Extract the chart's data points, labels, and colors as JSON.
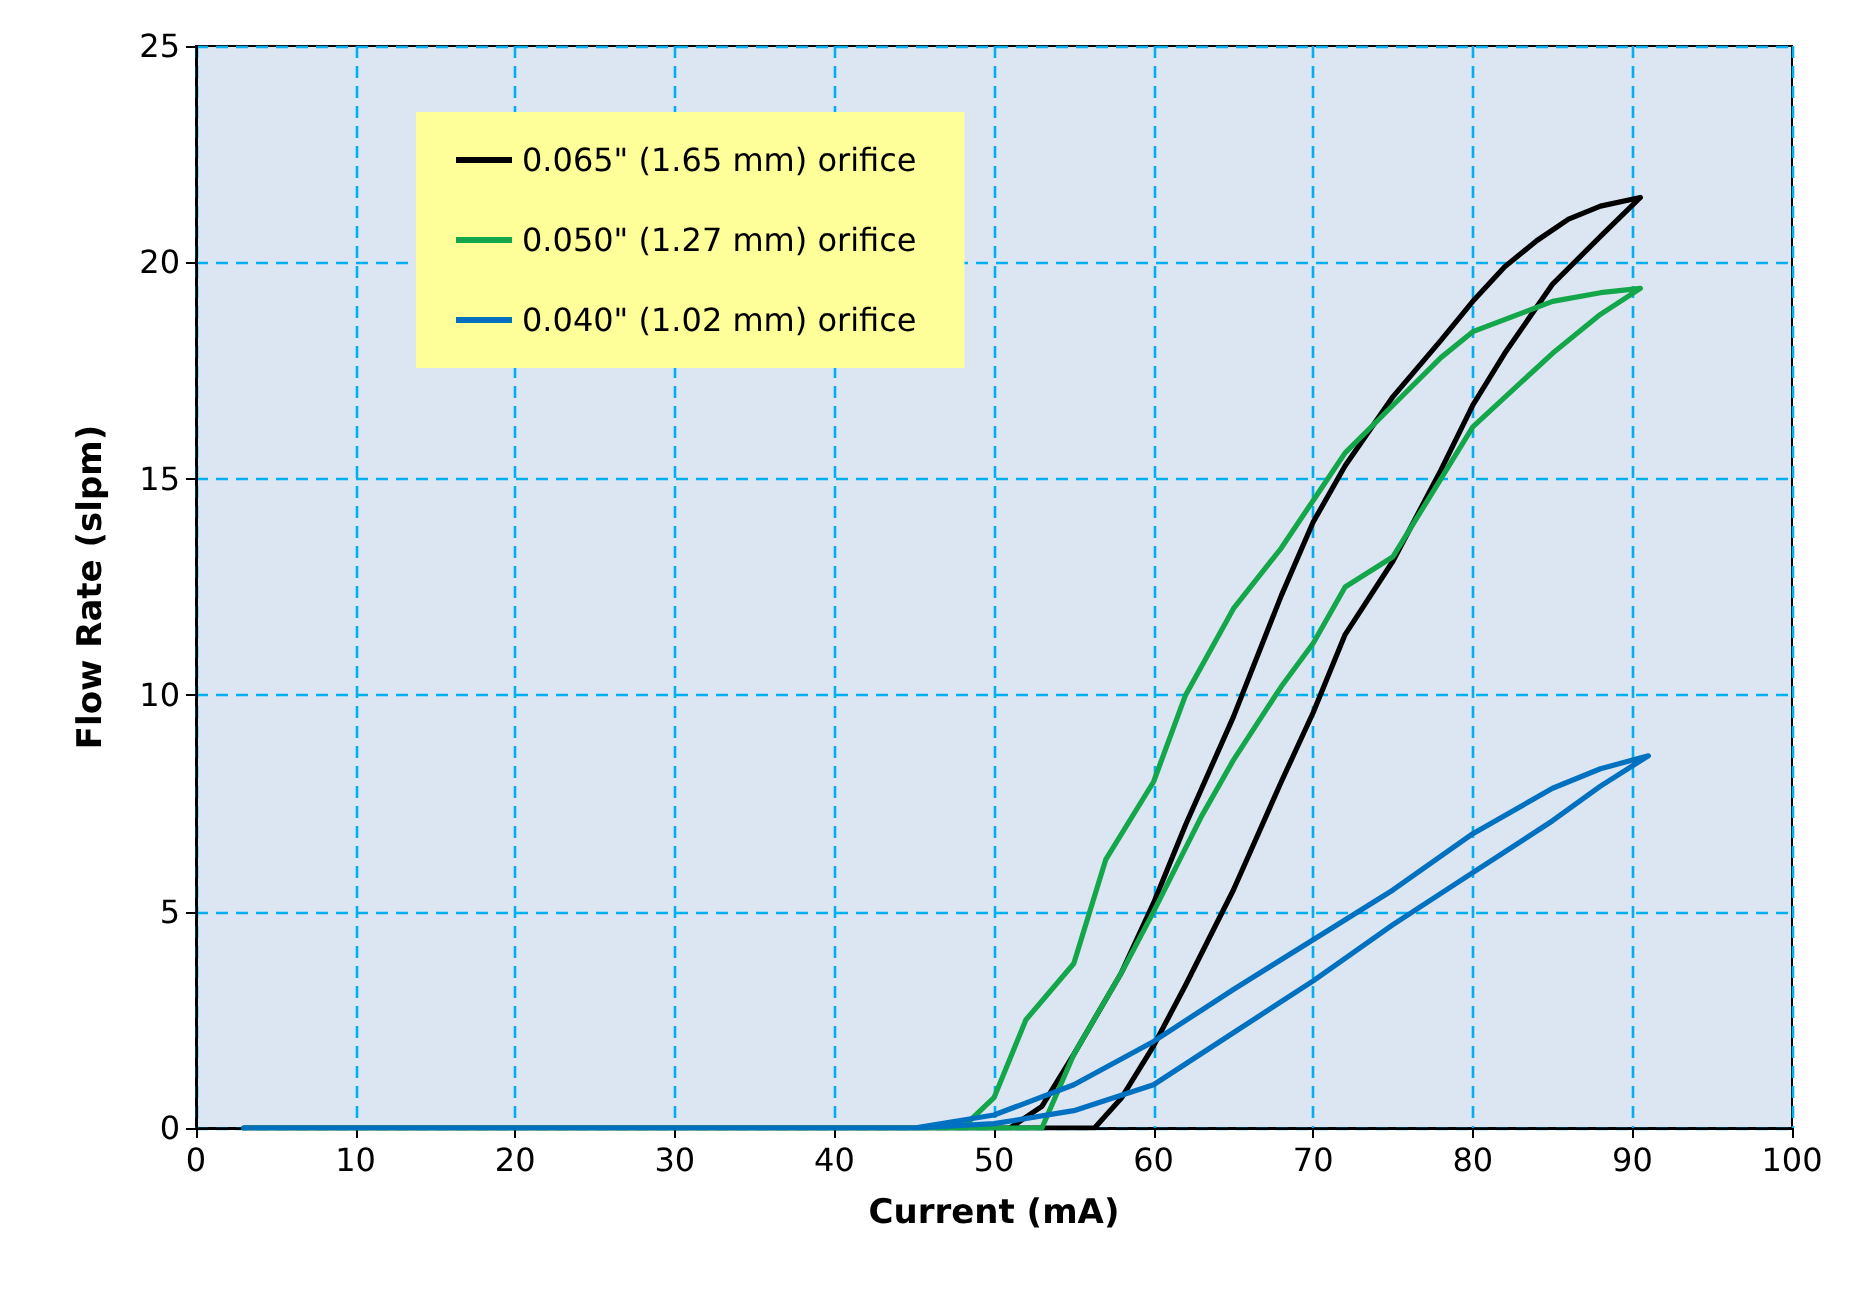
{
  "chart_data": {
    "type": "line",
    "xlabel": "Current (mA)",
    "ylabel": "Flow Rate (slpm)",
    "xlim": [
      0,
      100
    ],
    "xticks": [
      0,
      10,
      20,
      30,
      40,
      50,
      60,
      70,
      80,
      90,
      100
    ],
    "ylim": [
      0,
      25
    ],
    "yticks": [
      0,
      5,
      10,
      15,
      20,
      25
    ],
    "grid": true,
    "legend": "top left",
    "marker": "none",
    "line_style": "solid",
    "series": [
      {
        "name": "0.065\" (1.65 mm) orifice",
        "color": "#000000",
        "x": [
          3,
          56.3,
          58,
          60,
          62,
          65,
          68,
          70,
          72,
          75,
          78,
          80,
          82,
          85,
          88,
          90.5,
          88,
          86,
          84,
          82,
          80,
          78,
          75,
          72,
          70,
          68,
          65,
          62,
          60,
          58,
          55,
          53,
          51
        ],
        "values": [
          0,
          0,
          0.7,
          1.9,
          3.3,
          5.5,
          8,
          9.6,
          11.4,
          13.1,
          15.2,
          16.7,
          17.9,
          19.5,
          20.6,
          21.5,
          21.3,
          21,
          20.5,
          19.9,
          19.1,
          18.2,
          16.9,
          15.3,
          14,
          12.3,
          9.5,
          7,
          5.2,
          3.6,
          1.7,
          0.5,
          0
        ]
      },
      {
        "name": "0.050\" (1.27 mm) orifice",
        "color": "#13a64a",
        "x": [
          3,
          53,
          55,
          58,
          60,
          63,
          65,
          68,
          70,
          72,
          75,
          78,
          80,
          85,
          88,
          90.5,
          88,
          85,
          80,
          78,
          75,
          72,
          70,
          68,
          65,
          62,
          60,
          57,
          55,
          52,
          50,
          48
        ],
        "values": [
          0,
          0,
          1.7,
          3.6,
          5,
          7.2,
          8.5,
          10.2,
          11.2,
          12.5,
          13.2,
          15,
          16.2,
          17.9,
          18.8,
          19.4,
          19.3,
          19.1,
          18.4,
          17.8,
          16.7,
          15.6,
          14.5,
          13.4,
          12,
          10,
          8,
          6.2,
          3.8,
          2.5,
          0.7,
          0
        ]
      },
      {
        "name": "0.040\" (1.02 mm) orifice",
        "color": "#0070c0",
        "x": [
          3,
          45,
          50,
          55,
          60,
          65,
          70,
          75,
          80,
          85,
          88,
          91,
          88,
          85,
          80,
          75,
          70,
          65,
          60,
          55,
          50,
          45
        ],
        "values": [
          0,
          0,
          0.1,
          0.4,
          1,
          2.2,
          3.4,
          4.7,
          5.9,
          7.1,
          7.9,
          8.6,
          8.3,
          7.85,
          6.8,
          5.5,
          4.35,
          3.2,
          2,
          1,
          0.3,
          0
        ]
      }
    ]
  }
}
